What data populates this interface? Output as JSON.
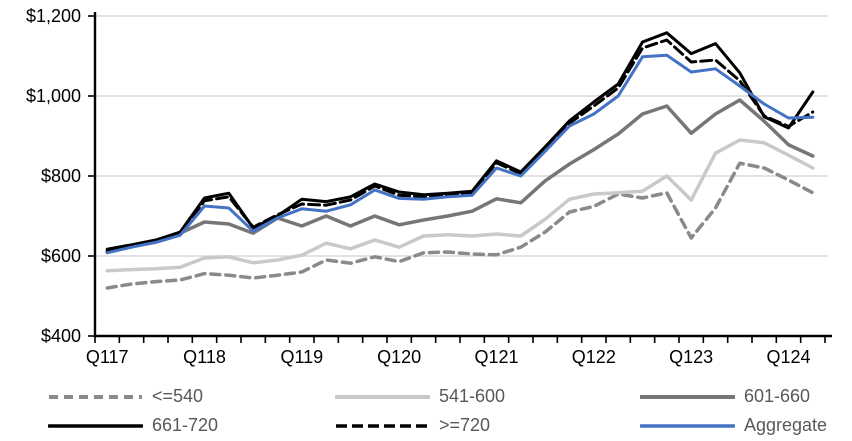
{
  "chart_data": {
    "type": "line",
    "title": "",
    "grid": "horizontal-only",
    "legend_position": "bottom",
    "x_label_every": 4,
    "x_tick_labels": [
      "Q117",
      "Q118",
      "Q119",
      "Q120",
      "Q121",
      "Q122",
      "Q123",
      "Q124"
    ],
    "categories": [
      "2017Q1",
      "2017Q2",
      "2017Q3",
      "2017Q4",
      "2018Q1",
      "2018Q2",
      "2018Q3",
      "2018Q4",
      "2019Q1",
      "2019Q2",
      "2019Q3",
      "2019Q4",
      "2020Q1",
      "2020Q2",
      "2020Q3",
      "2020Q4",
      "2021Q1",
      "2021Q2",
      "2021Q3",
      "2021Q4",
      "2022Q1",
      "2022Q2",
      "2022Q3",
      "2022Q4",
      "2023Q1",
      "2023Q2",
      "2023Q3",
      "2023Q4",
      "2024Q1",
      "2024Q2"
    ],
    "y_axis": {
      "min": 400,
      "max": 1200,
      "step": 200,
      "tick_labels": [
        "$400",
        "$600",
        "$800",
        "$1,000",
        "$1,200"
      ],
      "unit": "USD"
    },
    "colors": {
      "axis": "#000000",
      "gridline": "#D9D9D9",
      "legend_text": "#595959",
      "accent_blue": "#4472C4"
    },
    "series": [
      {
        "name": "<=540",
        "color": "#8A8A8A",
        "dash": "9 6",
        "width": 3.5,
        "values": [
          520,
          530,
          536,
          540,
          556,
          552,
          545,
          552,
          560,
          590,
          582,
          598,
          586,
          608,
          610,
          605,
          603,
          622,
          660,
          710,
          724,
          755,
          745,
          758,
          645,
          720,
          832,
          820,
          790,
          758
        ]
      },
      {
        "name": "541-600",
        "color": "#C9C9C9",
        "dash": null,
        "width": 3.5,
        "values": [
          563,
          566,
          568,
          572,
          595,
          598,
          583,
          590,
          602,
          632,
          618,
          640,
          622,
          650,
          653,
          650,
          655,
          650,
          692,
          742,
          755,
          758,
          762,
          800,
          740,
          857,
          890,
          883,
          852,
          820
        ]
      },
      {
        "name": "601-660",
        "color": "#767676",
        "dash": null,
        "width": 3.5,
        "values": [
          610,
          623,
          638,
          657,
          685,
          680,
          657,
          695,
          675,
          700,
          675,
          700,
          678,
          690,
          700,
          712,
          743,
          733,
          788,
          830,
          866,
          905,
          955,
          975,
          907,
          955,
          990,
          937,
          878,
          850
        ]
      },
      {
        "name": "661-720",
        "color": "#000000",
        "dash": null,
        "width": 3,
        "values": [
          617,
          628,
          640,
          660,
          745,
          757,
          670,
          700,
          742,
          736,
          748,
          780,
          760,
          753,
          757,
          762,
          838,
          810,
          873,
          938,
          985,
          1030,
          1135,
          1158,
          1106,
          1131,
          1058,
          948,
          920,
          1010
        ]
      },
      {
        "name": ">=720",
        "color": "#000000",
        "dash": "11 5",
        "width": 3,
        "values": [
          612,
          626,
          638,
          657,
          738,
          748,
          672,
          703,
          730,
          727,
          740,
          775,
          752,
          748,
          752,
          758,
          833,
          806,
          868,
          932,
          975,
          1020,
          1120,
          1140,
          1085,
          1090,
          1038,
          950,
          924,
          960
        ]
      },
      {
        "name": "Aggregate",
        "color": "#4472C4",
        "dash": null,
        "width": 3,
        "values": [
          608,
          622,
          634,
          652,
          725,
          720,
          662,
          695,
          718,
          712,
          728,
          765,
          744,
          742,
          748,
          752,
          820,
          800,
          862,
          925,
          955,
          1000,
          1098,
          1102,
          1060,
          1068,
          1025,
          980,
          945,
          947
        ]
      }
    ]
  },
  "legend": {
    "rows": [
      [
        "<=540",
        "541-600",
        "601-660"
      ],
      [
        "661-720",
        ">=720",
        "Aggregate"
      ]
    ]
  }
}
